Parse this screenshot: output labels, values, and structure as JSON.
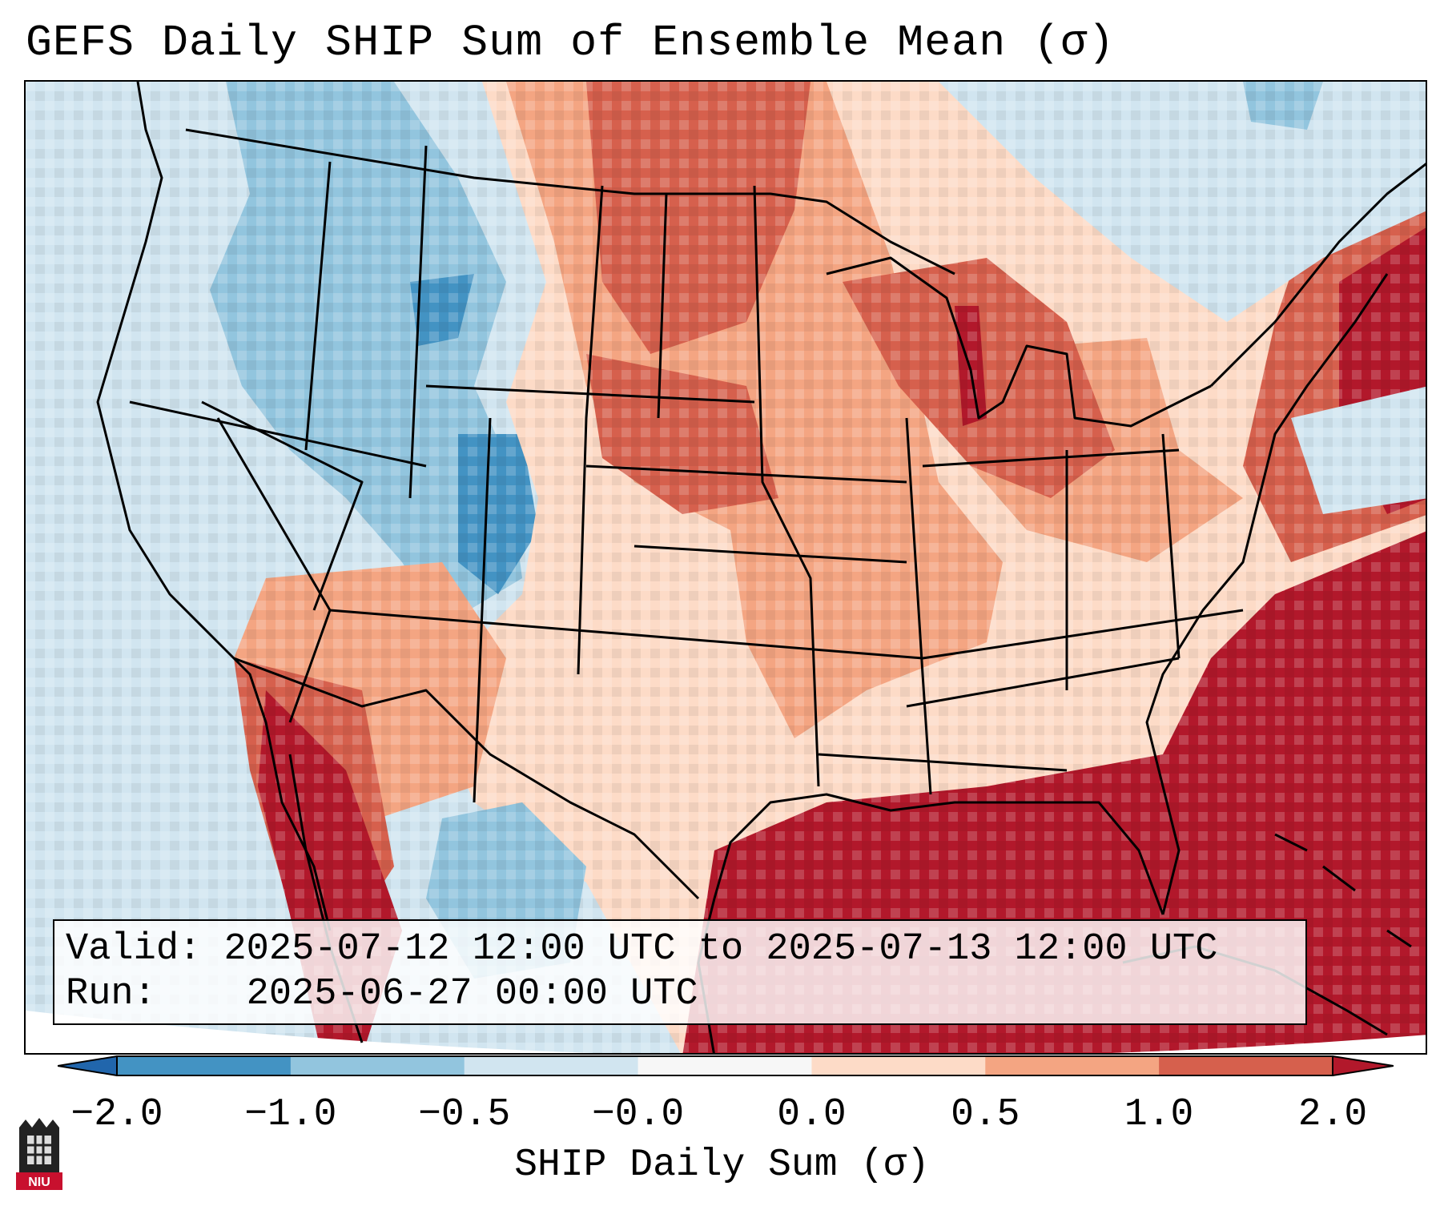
{
  "title": "GEFS Daily SHIP Sum of Ensemble Mean (σ)",
  "valid_box": {
    "valid_label": "Valid:",
    "valid_value": "2025-07-12 12:00 UTC to 2025-07-13 12:00 UTC",
    "run_label": "Run:",
    "run_value": "2025-06-27 00:00 UTC"
  },
  "colorbar": {
    "label": "SHIP Daily Sum (σ)",
    "ticks": [
      "−2.0",
      "−1.0",
      "−0.5",
      "−0.0",
      "0.0",
      "0.5",
      "1.0",
      "2.0"
    ],
    "colors": [
      "#2166ac",
      "#4393c3",
      "#92c5de",
      "#d1e5f0",
      "#f7f7f7",
      "#fddbc7",
      "#f4a582",
      "#d6604d",
      "#b2182b"
    ],
    "extend": "both"
  },
  "logo_text": "NIU"
}
